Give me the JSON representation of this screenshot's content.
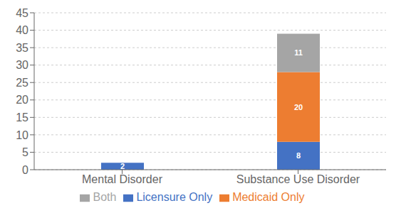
{
  "chart_data": {
    "type": "bar",
    "stacked": true,
    "categories": [
      "Mental Disorder",
      "Substance Use Disorder"
    ],
    "series": [
      {
        "name": "Licensure Only",
        "color": "#4472C4",
        "values": [
          2,
          8
        ]
      },
      {
        "name": "Medicaid Only",
        "color": "#ED7D31",
        "values": [
          0,
          20
        ]
      },
      {
        "name": "Both",
        "color": "#A5A5A5",
        "values": [
          0,
          11
        ]
      }
    ],
    "ylim": [
      0,
      45
    ],
    "yticks": [
      0,
      5,
      10,
      15,
      20,
      25,
      30,
      35,
      40,
      45
    ],
    "grid": true,
    "data_labels": true,
    "legend": "bottom"
  }
}
